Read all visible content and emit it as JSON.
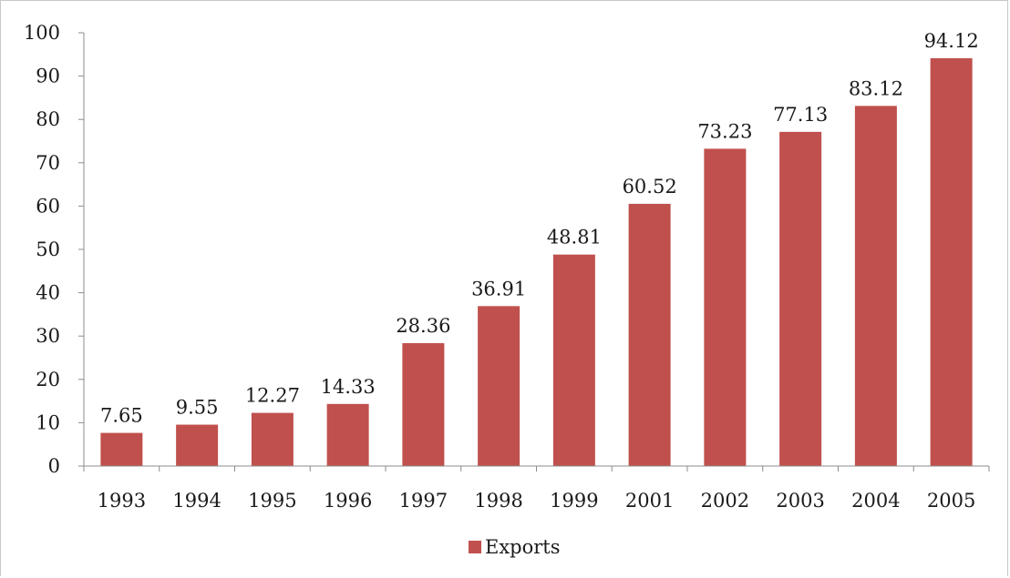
{
  "chart_data": {
    "type": "bar",
    "categories": [
      "1993",
      "1994",
      "1995",
      "1996",
      "1997",
      "1998",
      "1999",
      "2001",
      "2002",
      "2003",
      "2004",
      "2005"
    ],
    "series": [
      {
        "name": "Exports",
        "color": "#c0504d",
        "values": [
          7.65,
          9.55,
          12.27,
          14.33,
          28.36,
          36.91,
          48.81,
          60.52,
          73.23,
          77.13,
          83.12,
          94.12
        ]
      }
    ],
    "ylim": [
      0,
      100
    ],
    "yticks": [
      "0",
      "10",
      "20",
      "30",
      "40",
      "50",
      "60",
      "70",
      "80",
      "90",
      "100"
    ],
    "data_labels": [
      "7.65",
      "9.55",
      "12.27",
      "14.33",
      "28.36",
      "36.91",
      "48.81",
      "60.52",
      "73.23",
      "77.13",
      "83.12",
      "94.12"
    ],
    "grid": false,
    "legend": {
      "position": "bottom",
      "label": "Exports"
    }
  }
}
